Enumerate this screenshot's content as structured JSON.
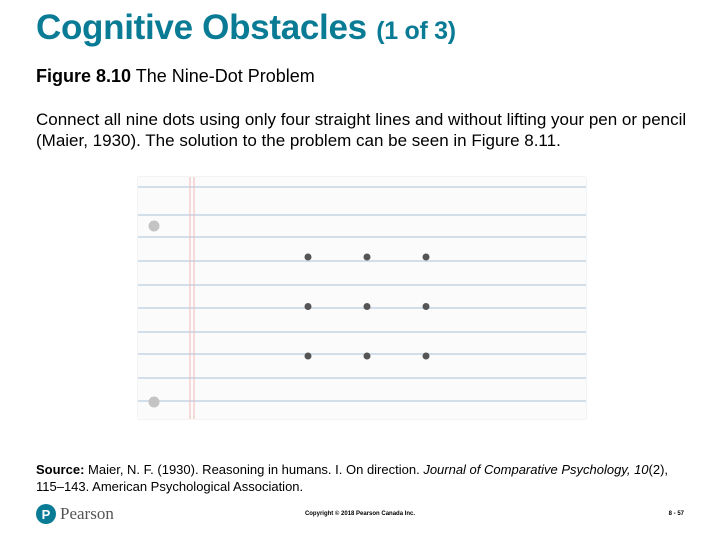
{
  "title": {
    "main": "Cognitive Obstacles",
    "part": "(1 of 3)"
  },
  "figure": {
    "label": "Figure 8.10",
    "caption": "The Nine-Dot Problem"
  },
  "instructions": "Connect all nine dots using only four straight lines and without lifting your pen or pencil (Maier, 1930). The solution to the problem can be seen in Figure 8.11.",
  "source": {
    "label": "Source:",
    "text_before": "Maier, N. F. (1930). Reasoning in humans. I. On direction. ",
    "journal": "Journal of Comparative Psychology,",
    "volume": "10",
    "text_after": "(2), 115–143. American Psychological Association."
  },
  "footer": {
    "logo_text": "Pearson",
    "logo_mark": "P",
    "copyright": "Copyright © 2018 Pearson Canada Inc.",
    "page": "8 - 57"
  },
  "colors": {
    "title": "#0a7b95",
    "rule_lines": "#b9cde0",
    "margin_line": "#f0b8b8",
    "dots": "#555555",
    "punch_holes": "#c4c4c4"
  },
  "nine_dot_grid": {
    "rows": 3,
    "cols": 3
  }
}
